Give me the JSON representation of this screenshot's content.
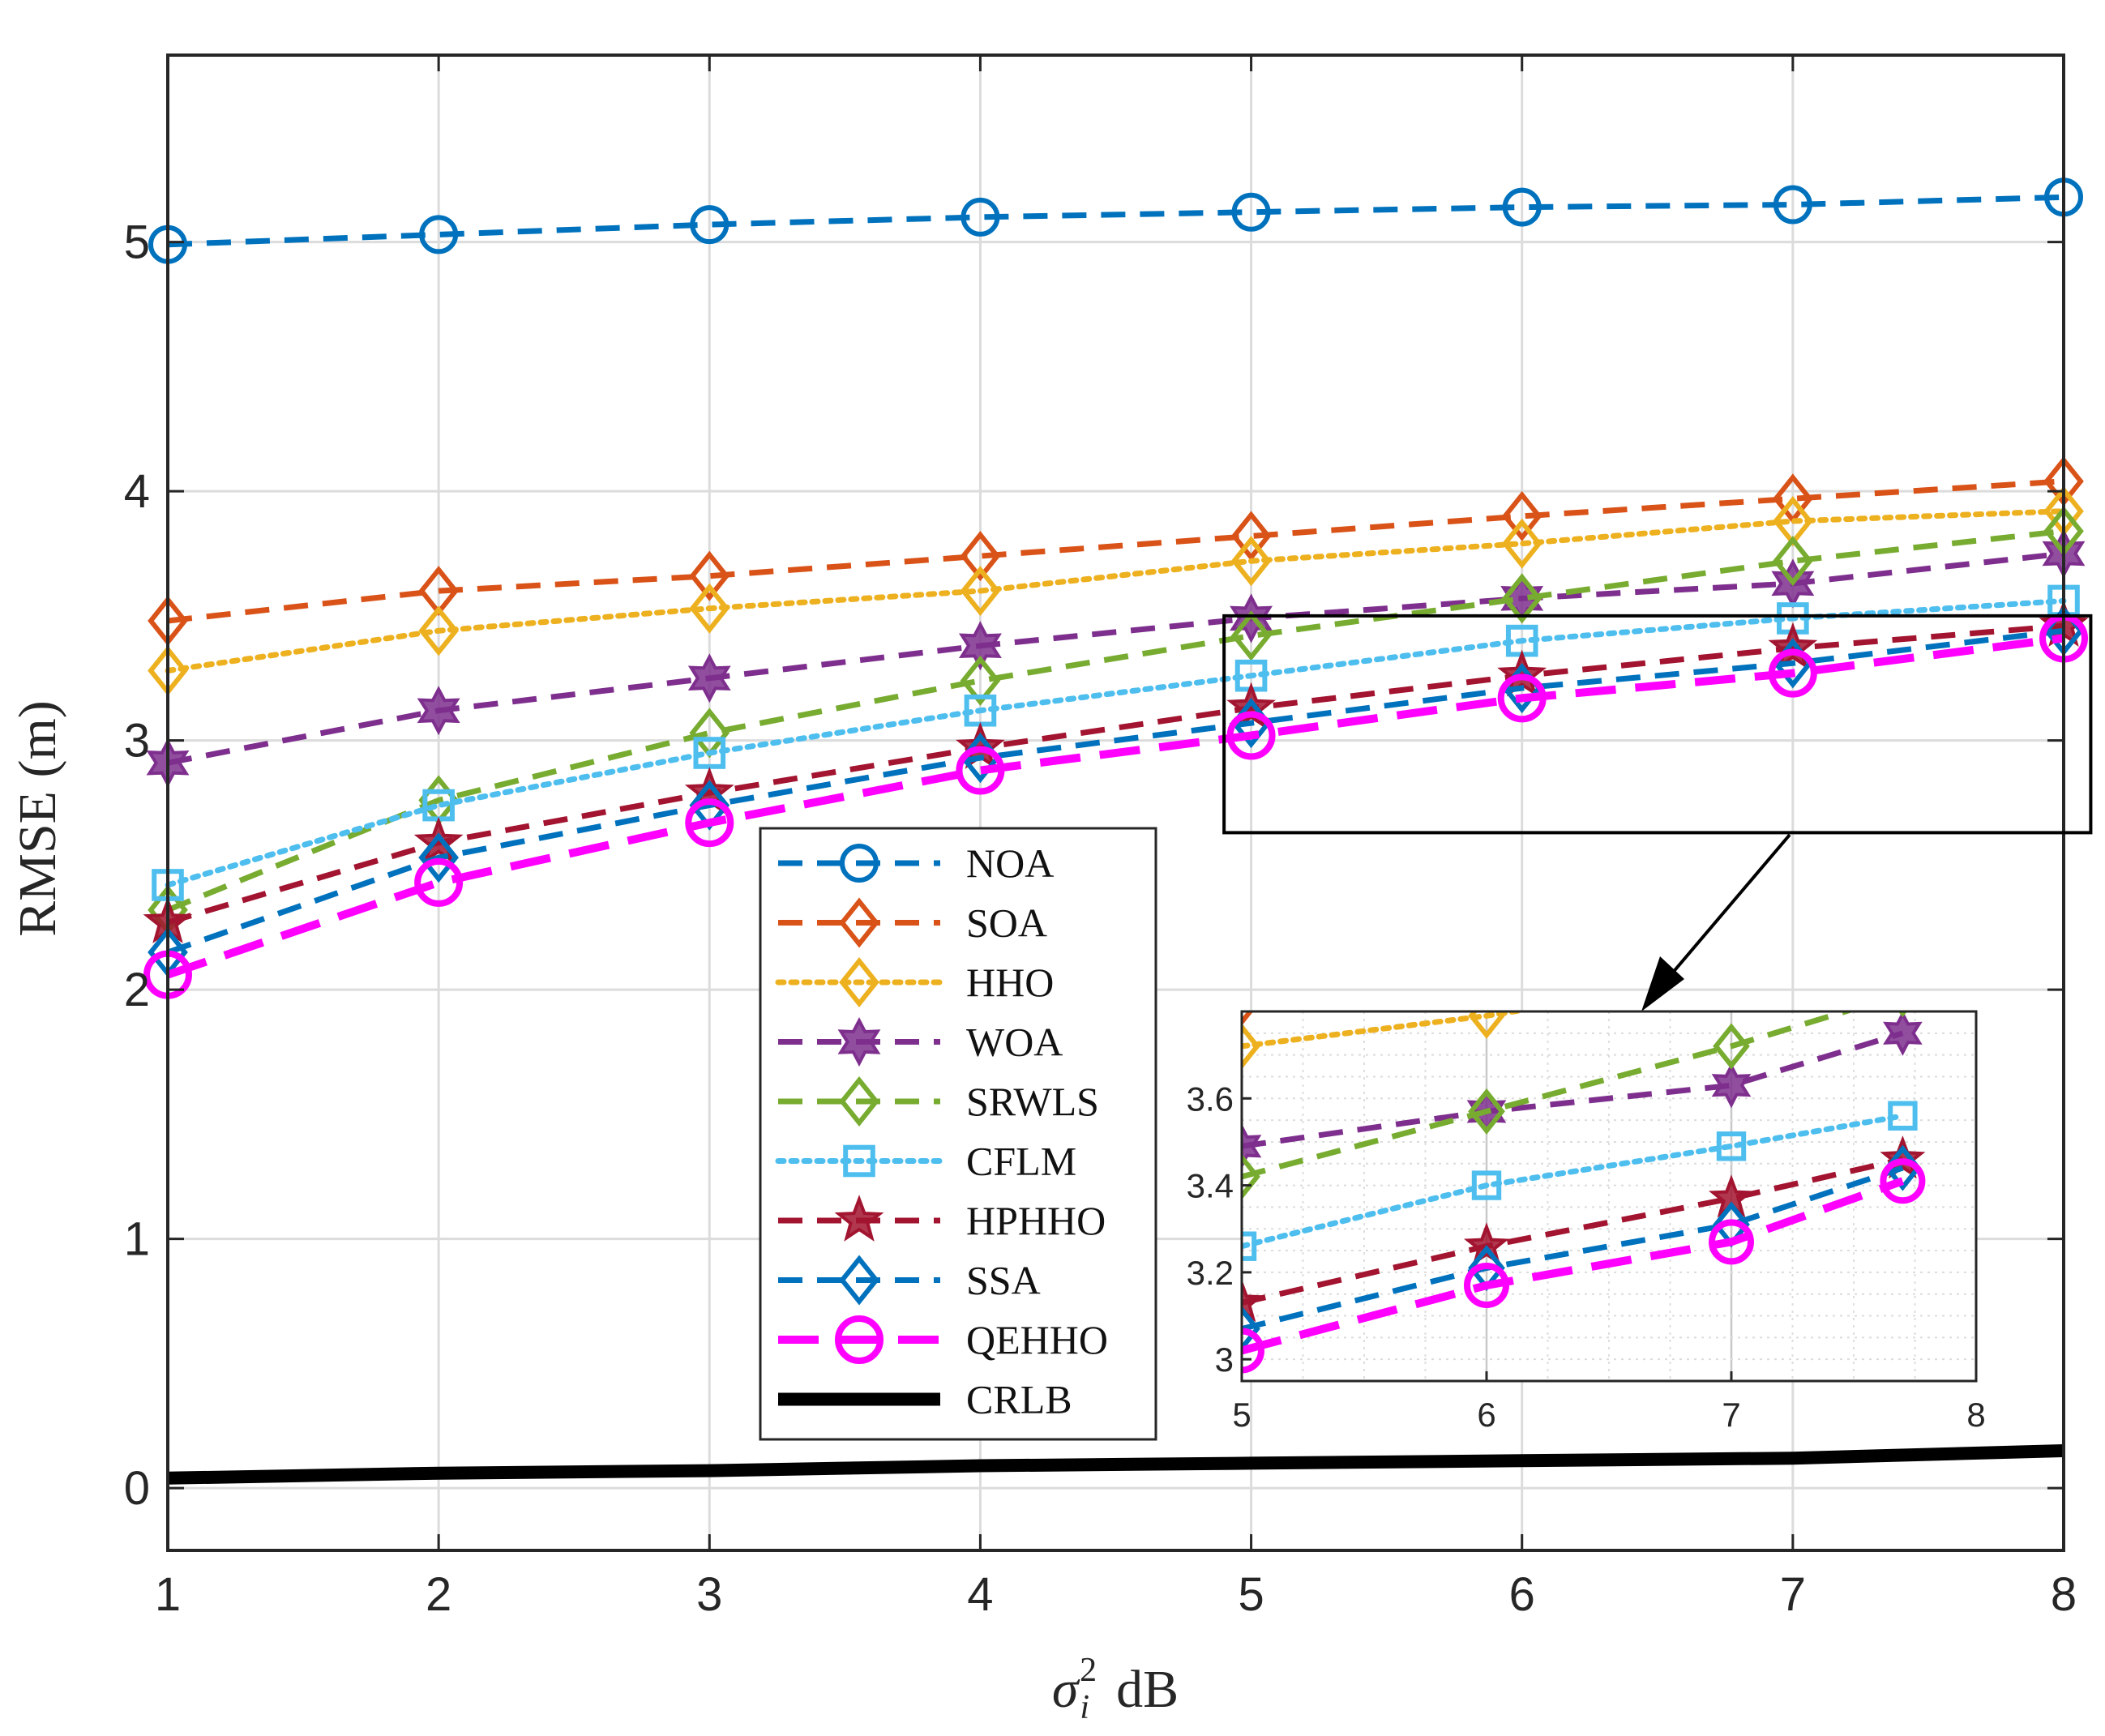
{
  "chart_data": {
    "type": "line",
    "title": "",
    "xlabel": "σ_i^2 dB",
    "xlabel_base": "σ",
    "xlabel_sub": "i",
    "xlabel_sup": "2",
    "xlabel_unit": "dB",
    "ylabel": "RMSE (m)",
    "x": [
      1,
      2,
      3,
      4,
      5,
      6,
      7,
      8
    ],
    "xlim": [
      1,
      8
    ],
    "ylim": [
      -0.25,
      5.75
    ],
    "xticks": [
      "1",
      "2",
      "3",
      "4",
      "5",
      "6",
      "7",
      "8"
    ],
    "yticks": [
      "0",
      "1",
      "2",
      "3",
      "4",
      "5"
    ],
    "grid": true,
    "legend_position": "center-bottom",
    "series": [
      {
        "name": "NOA",
        "color": "#0072BD",
        "marker": "circle",
        "line": "dash",
        "values": [
          4.99,
          5.03,
          5.07,
          5.1,
          5.12,
          5.14,
          5.15,
          5.18
        ]
      },
      {
        "name": "SOA",
        "color": "#D95319",
        "marker": "diamond",
        "line": "dash",
        "values": [
          3.48,
          3.6,
          3.66,
          3.74,
          3.82,
          3.9,
          3.97,
          4.04
        ]
      },
      {
        "name": "HHO",
        "color": "#EDB120",
        "marker": "diamond",
        "line": "dot",
        "values": [
          3.28,
          3.44,
          3.53,
          3.6,
          3.72,
          3.79,
          3.88,
          3.92
        ]
      },
      {
        "name": "WOA",
        "color": "#7E2F8E",
        "marker": "hexagram",
        "line": "dash",
        "values": [
          2.91,
          3.12,
          3.25,
          3.38,
          3.49,
          3.57,
          3.63,
          3.75
        ]
      },
      {
        "name": "SRWLS",
        "color": "#77AC30",
        "marker": "diamond",
        "line": "dash",
        "values": [
          2.32,
          2.76,
          3.03,
          3.24,
          3.42,
          3.57,
          3.72,
          3.84
        ]
      },
      {
        "name": "CFLM",
        "color": "#4DBEEE",
        "marker": "square",
        "line": "dot",
        "values": [
          2.42,
          2.74,
          2.95,
          3.12,
          3.26,
          3.4,
          3.49,
          3.56
        ]
      },
      {
        "name": "HPHHO",
        "color": "#A2142F",
        "marker": "pentagram",
        "line": "dash",
        "values": [
          2.27,
          2.59,
          2.79,
          2.97,
          3.13,
          3.26,
          3.37,
          3.46
        ]
      },
      {
        "name": "SSA",
        "color": "#0072BD",
        "marker": "diamond",
        "line": "dash",
        "values": [
          2.15,
          2.53,
          2.74,
          2.93,
          3.07,
          3.21,
          3.31,
          3.44
        ]
      },
      {
        "name": "QEHHO",
        "color": "#FF00FF",
        "marker": "circle",
        "line": "longdash",
        "values": [
          2.06,
          2.43,
          2.67,
          2.88,
          3.02,
          3.17,
          3.27,
          3.41
        ]
      },
      {
        "name": "CRLB",
        "color": "#000000",
        "marker": "none",
        "line": "solid",
        "values": [
          0.04,
          0.06,
          0.07,
          0.09,
          0.1,
          0.11,
          0.12,
          0.15
        ]
      }
    ],
    "zoom_box": {
      "xlim": [
        4.9,
        8.1
      ],
      "ylim": [
        2.63,
        3.5
      ]
    },
    "inset": {
      "xlim": [
        5,
        8
      ],
      "ylim": [
        2.95,
        3.8
      ],
      "xticks": [
        "5",
        "6",
        "7",
        "8"
      ],
      "yticks": [
        "3",
        "3.2",
        "3.4",
        "3.6"
      ],
      "grid": "fine-dotted",
      "series_x": [
        5,
        6,
        7,
        7.7
      ]
    }
  }
}
